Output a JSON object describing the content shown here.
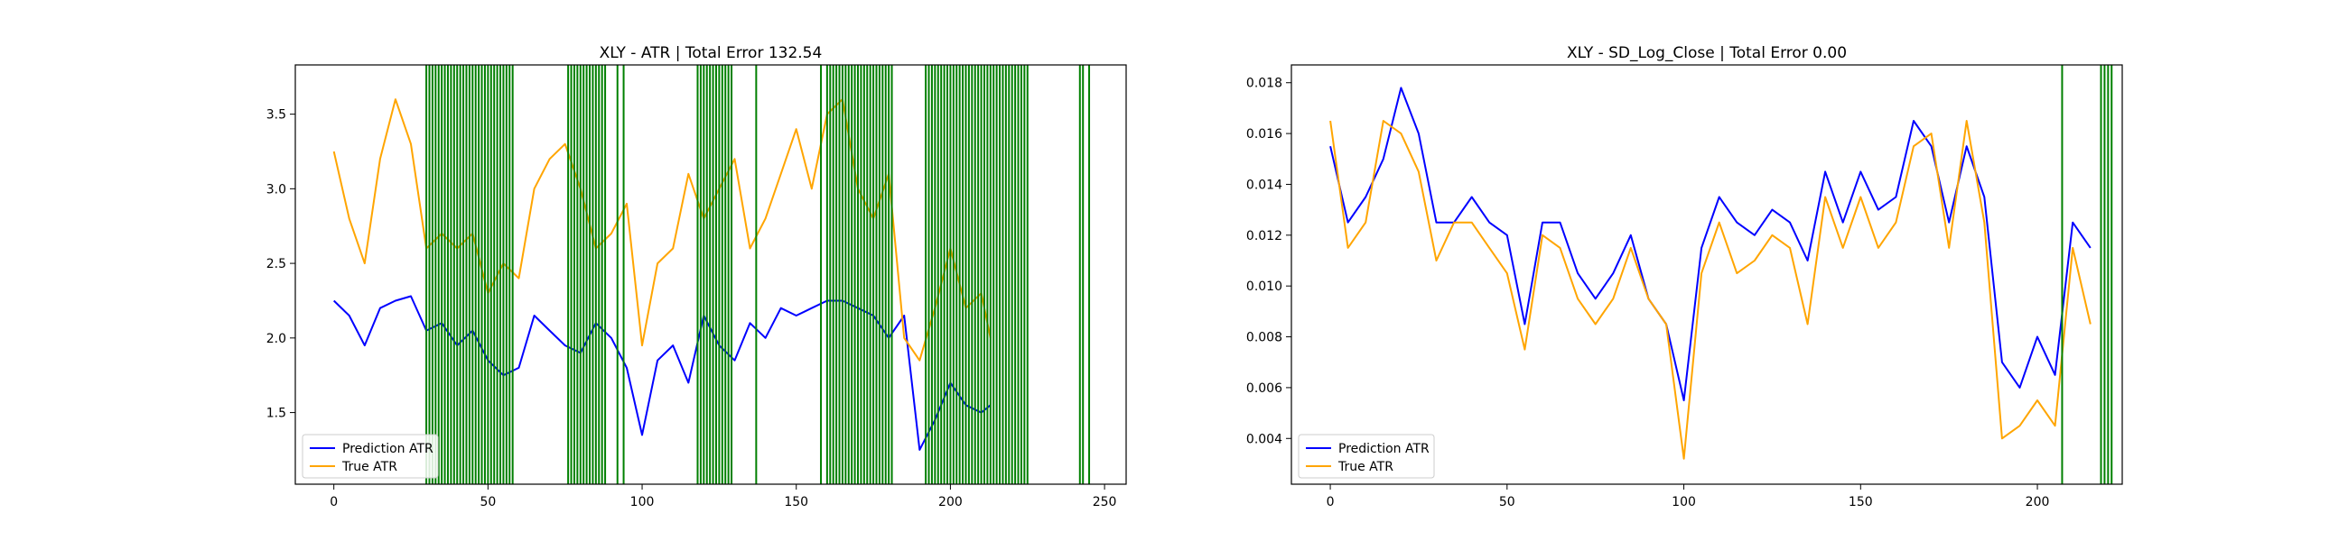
{
  "chart_data": [
    {
      "type": "line",
      "title": "XLY - ATR | Total Error 132.54",
      "xlabel": "",
      "ylabel": "",
      "xlim": [
        -12.5,
        257
      ],
      "ylim": [
        1.02,
        3.83
      ],
      "xticks": [
        0,
        50,
        100,
        150,
        200,
        250
      ],
      "yticks": [
        1.5,
        2.0,
        2.5,
        3.0,
        3.5
      ],
      "ytick_decimals": 1,
      "legend": {
        "position": "lower-left",
        "entries": [
          "Prediction ATR",
          "True ATR"
        ]
      },
      "series": [
        {
          "name": "Prediction ATR",
          "color": "#0000ff",
          "x": [
            0,
            5,
            10,
            15,
            20,
            25,
            30,
            35,
            40,
            45,
            50,
            55,
            60,
            65,
            70,
            75,
            80,
            85,
            90,
            95,
            100,
            105,
            110,
            115,
            120,
            125,
            130,
            135,
            140,
            145,
            150,
            155,
            160,
            165,
            170,
            175,
            180,
            185,
            190,
            195,
            200,
            205,
            210,
            213
          ],
          "y": [
            2.25,
            2.15,
            1.95,
            2.2,
            2.25,
            2.28,
            2.05,
            2.1,
            1.95,
            2.05,
            1.85,
            1.75,
            1.8,
            2.15,
            2.05,
            1.95,
            1.9,
            2.1,
            2.0,
            1.8,
            1.35,
            1.85,
            1.95,
            1.7,
            2.15,
            1.95,
            1.85,
            2.1,
            2.0,
            2.2,
            2.15,
            2.2,
            2.25,
            2.25,
            2.2,
            2.15,
            2.0,
            2.15,
            1.25,
            1.45,
            1.7,
            1.55,
            1.5,
            1.55
          ]
        },
        {
          "name": "True ATR",
          "color": "#ffa500",
          "x": [
            0,
            5,
            10,
            15,
            20,
            25,
            30,
            35,
            40,
            45,
            50,
            55,
            60,
            65,
            70,
            75,
            80,
            85,
            90,
            95,
            100,
            105,
            110,
            115,
            120,
            125,
            130,
            135,
            140,
            145,
            150,
            155,
            160,
            165,
            170,
            175,
            180,
            185,
            190,
            195,
            200,
            205,
            210,
            213
          ],
          "y": [
            3.25,
            2.8,
            2.5,
            3.2,
            3.6,
            3.3,
            2.6,
            2.7,
            2.6,
            2.7,
            2.3,
            2.5,
            2.4,
            3.0,
            3.2,
            3.3,
            3.0,
            2.6,
            2.7,
            2.9,
            1.95,
            2.5,
            2.6,
            3.1,
            2.8,
            3.0,
            3.2,
            2.6,
            2.8,
            3.1,
            3.4,
            3.0,
            3.5,
            3.6,
            3.0,
            2.8,
            3.1,
            2.0,
            1.85,
            2.2,
            2.6,
            2.2,
            2.3,
            2.0
          ]
        }
      ],
      "vertical_lines": {
        "color": "#008000",
        "x": [
          30,
          31,
          32,
          33,
          34,
          35,
          36,
          37,
          38,
          39,
          40,
          41,
          42,
          43,
          44,
          45,
          46,
          47,
          48,
          49,
          50,
          51,
          52,
          53,
          54,
          55,
          56,
          57,
          58,
          76,
          77,
          78,
          79,
          80,
          81,
          82,
          83,
          84,
          85,
          86,
          87,
          88,
          92,
          94,
          118,
          119,
          120,
          121,
          122,
          123,
          124,
          125,
          126,
          127,
          128,
          129,
          137,
          158,
          160,
          161,
          162,
          163,
          164,
          165,
          166,
          167,
          168,
          169,
          170,
          171,
          172,
          173,
          174,
          175,
          176,
          177,
          178,
          179,
          180,
          181,
          192,
          193,
          194,
          195,
          196,
          197,
          198,
          199,
          200,
          201,
          202,
          203,
          204,
          205,
          206,
          207,
          208,
          209,
          210,
          211,
          212,
          213,
          214,
          215,
          216,
          217,
          218,
          219,
          220,
          221,
          222,
          223,
          224,
          225,
          242,
          243,
          245
        ]
      }
    },
    {
      "type": "line",
      "title": "XLY - SD_Log_Close | Total Error 0.00",
      "xlabel": "",
      "ylabel": "",
      "xlim": [
        -11,
        224
      ],
      "ylim": [
        0.0022,
        0.0187
      ],
      "xticks": [
        0,
        50,
        100,
        150,
        200
      ],
      "yticks": [
        0.004,
        0.006,
        0.008,
        0.01,
        0.012,
        0.014,
        0.016,
        0.018
      ],
      "ytick_decimals": 3,
      "legend": {
        "position": "lower-left",
        "entries": [
          "Prediction ATR",
          "True ATR"
        ]
      },
      "series": [
        {
          "name": "Prediction ATR",
          "color": "#0000ff",
          "x": [
            0,
            5,
            10,
            15,
            20,
            25,
            30,
            35,
            40,
            45,
            50,
            55,
            60,
            65,
            70,
            75,
            80,
            85,
            90,
            95,
            100,
            105,
            110,
            115,
            120,
            125,
            130,
            135,
            140,
            145,
            150,
            155,
            160,
            165,
            170,
            175,
            180,
            185,
            190,
            195,
            200,
            205,
            210,
            215
          ],
          "y": [
            0.0155,
            0.0125,
            0.0135,
            0.015,
            0.0178,
            0.016,
            0.0125,
            0.0125,
            0.0135,
            0.0125,
            0.012,
            0.0085,
            0.0125,
            0.0125,
            0.0105,
            0.0095,
            0.0105,
            0.012,
            0.0095,
            0.0085,
            0.0055,
            0.0115,
            0.0135,
            0.0125,
            0.012,
            0.013,
            0.0125,
            0.011,
            0.0145,
            0.0125,
            0.0145,
            0.013,
            0.0135,
            0.0165,
            0.0155,
            0.0125,
            0.0155,
            0.0135,
            0.007,
            0.006,
            0.008,
            0.0065,
            0.0125,
            0.0115
          ]
        },
        {
          "name": "True ATR",
          "color": "#ffa500",
          "x": [
            0,
            5,
            10,
            15,
            20,
            25,
            30,
            35,
            40,
            45,
            50,
            55,
            60,
            65,
            70,
            75,
            80,
            85,
            90,
            95,
            100,
            105,
            110,
            115,
            120,
            125,
            130,
            135,
            140,
            145,
            150,
            155,
            160,
            165,
            170,
            175,
            180,
            185,
            190,
            195,
            200,
            205,
            210,
            215
          ],
          "y": [
            0.0165,
            0.0115,
            0.0125,
            0.0165,
            0.016,
            0.0145,
            0.011,
            0.0125,
            0.0125,
            0.0115,
            0.0105,
            0.0075,
            0.012,
            0.0115,
            0.0095,
            0.0085,
            0.0095,
            0.0115,
            0.0095,
            0.0085,
            0.0032,
            0.0105,
            0.0125,
            0.0105,
            0.011,
            0.012,
            0.0115,
            0.0085,
            0.0135,
            0.0115,
            0.0135,
            0.0115,
            0.0125,
            0.0155,
            0.016,
            0.0115,
            0.0165,
            0.0125,
            0.004,
            0.0045,
            0.0055,
            0.0045,
            0.0115,
            0.0085
          ]
        }
      ],
      "vertical_lines": {
        "color": "#008000",
        "x": [
          207,
          218,
          219,
          220,
          221
        ]
      }
    }
  ]
}
